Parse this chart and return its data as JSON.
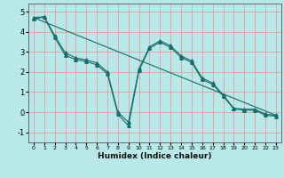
{
  "title": "",
  "xlabel": "Humidex (Indice chaleur)",
  "bg_color": "#b8e8e8",
  "grid_color": "#e89090",
  "line_color": "#1a6b6b",
  "xlim": [
    -0.5,
    23.5
  ],
  "ylim": [
    -1.5,
    5.4
  ],
  "xticks": [
    0,
    1,
    2,
    3,
    4,
    5,
    6,
    7,
    8,
    9,
    10,
    11,
    12,
    13,
    14,
    15,
    16,
    17,
    18,
    19,
    20,
    21,
    22,
    23
  ],
  "yticks": [
    -1,
    0,
    1,
    2,
    3,
    4,
    5
  ],
  "line1_x": [
    0,
    1,
    2,
    3,
    4,
    5,
    6,
    7,
    8,
    9,
    10,
    11,
    12,
    13,
    14,
    15,
    16,
    17,
    18,
    19,
    20,
    21,
    22,
    23
  ],
  "line1_y": [
    4.7,
    4.75,
    3.8,
    2.95,
    2.7,
    2.6,
    2.45,
    2.0,
    0.0,
    -0.5,
    2.15,
    3.25,
    3.55,
    3.3,
    2.8,
    2.55,
    1.7,
    1.45,
    0.85,
    0.2,
    0.15,
    0.15,
    -0.1,
    -0.15
  ],
  "line2_x": [
    0,
    1,
    2,
    3,
    4,
    5,
    6,
    7,
    8,
    9,
    10,
    11,
    12,
    13,
    14,
    15,
    16,
    17,
    18,
    19,
    20,
    21,
    22,
    23
  ],
  "line2_y": [
    4.65,
    4.72,
    3.72,
    2.82,
    2.62,
    2.52,
    2.35,
    1.92,
    -0.1,
    -0.68,
    2.08,
    3.18,
    3.48,
    3.22,
    2.72,
    2.48,
    1.62,
    1.38,
    0.8,
    0.16,
    0.1,
    0.1,
    -0.15,
    -0.2
  ],
  "line3_x": [
    0,
    23
  ],
  "line3_y": [
    4.7,
    -0.15
  ]
}
